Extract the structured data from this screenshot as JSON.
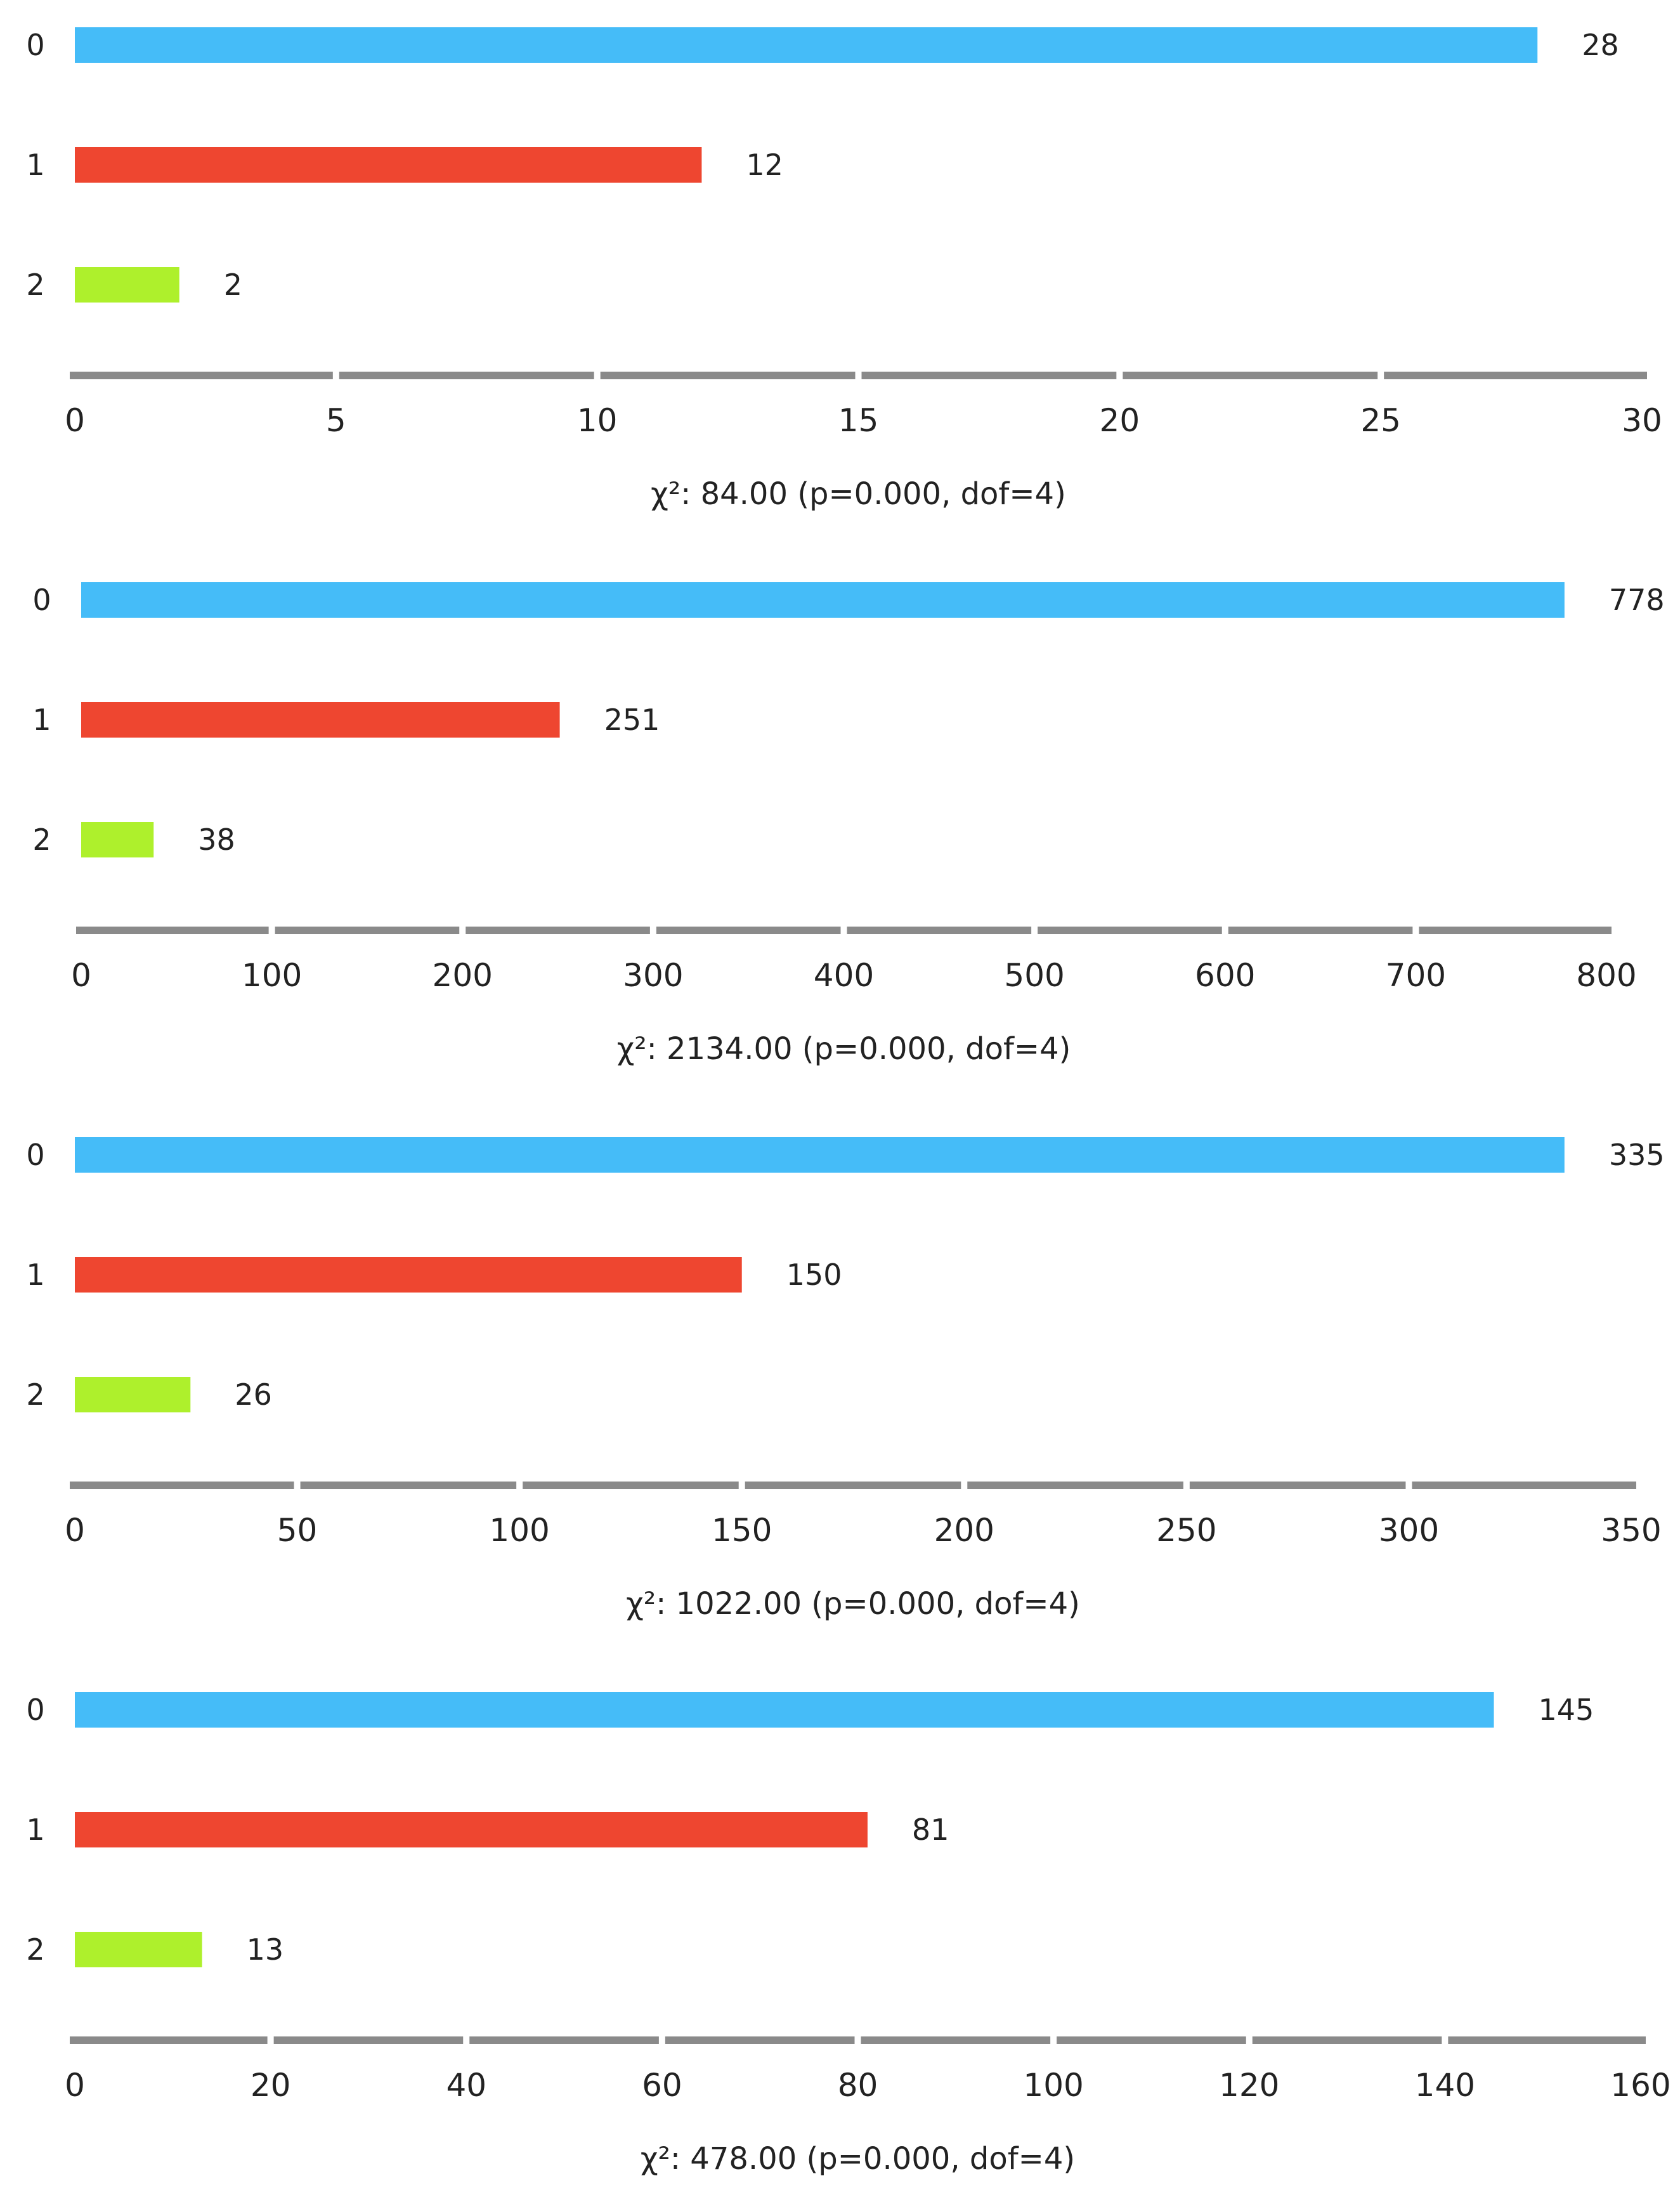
{
  "chart_data": [
    {
      "type": "bar",
      "orientation": "horizontal",
      "categories": [
        "0",
        "1",
        "2"
      ],
      "values": [
        28,
        12,
        2
      ],
      "colors": [
        "#45BCF8",
        "#EE4630",
        "#AEF02C"
      ],
      "xlim": [
        0,
        30
      ],
      "xticks": [
        "0",
        "5",
        "10",
        "15",
        "20",
        "25",
        "30"
      ],
      "stat_text": "χ²: 84.00 (p=0.000, dof=4)",
      "grid": false
    },
    {
      "type": "bar",
      "orientation": "horizontal",
      "categories": [
        "0",
        "1",
        "2"
      ],
      "values": [
        778,
        251,
        38
      ],
      "colors": [
        "#45BCF8",
        "#EE4630",
        "#AEF02C"
      ],
      "xlim": [
        0,
        800
      ],
      "xticks": [
        "0",
        "100",
        "200",
        "300",
        "400",
        "500",
        "600",
        "700",
        "800"
      ],
      "stat_text": "χ²: 2134.00 (p=0.000, dof=4)",
      "grid": false
    },
    {
      "type": "bar",
      "orientation": "horizontal",
      "categories": [
        "0",
        "1",
        "2"
      ],
      "values": [
        335,
        150,
        26
      ],
      "colors": [
        "#45BCF8",
        "#EE4630",
        "#AEF02C"
      ],
      "xlim": [
        0,
        350
      ],
      "xticks": [
        "0",
        "50",
        "100",
        "150",
        "200",
        "250",
        "300",
        "350"
      ],
      "stat_text": "χ²: 1022.00 (p=0.000, dof=4)",
      "grid": false
    },
    {
      "type": "bar",
      "orientation": "horizontal",
      "categories": [
        "0",
        "1",
        "2"
      ],
      "values": [
        145,
        81,
        13
      ],
      "colors": [
        "#45BCF8",
        "#EE4630",
        "#AEF02C"
      ],
      "xlim": [
        0,
        160
      ],
      "xticks": [
        "0",
        "20",
        "40",
        "60",
        "80",
        "100",
        "120",
        "140",
        "160"
      ],
      "stat_text": "χ²: 478.00 (p=0.000, dof=4)",
      "grid": false
    }
  ]
}
